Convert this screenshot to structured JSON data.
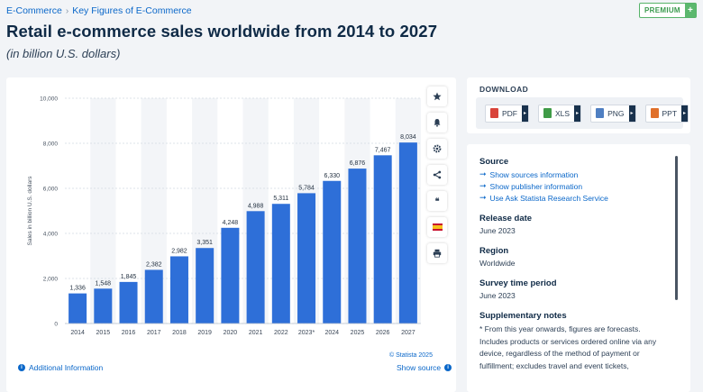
{
  "breadcrumb": {
    "items": [
      "E-Commerce",
      "Key Figures of E-Commerce"
    ],
    "separator": "›"
  },
  "premium_badge": {
    "label": "PREMIUM",
    "plus": "+"
  },
  "page": {
    "title": "Retail e-commerce sales worldwide from 2014 to 2027",
    "subtitle": "(in billion U.S. dollars)"
  },
  "chart_data": {
    "type": "bar",
    "categories": [
      "2014",
      "2015",
      "2016",
      "2017",
      "2018",
      "2019",
      "2020",
      "2021",
      "2022",
      "2023*",
      "2024",
      "2025",
      "2026",
      "2027"
    ],
    "values": [
      1336,
      1548,
      1845,
      2382,
      2982,
      3351,
      4248,
      4988,
      5311,
      5784,
      6330,
      6876,
      7467,
      8034
    ],
    "value_labels": [
      "1,336",
      "1,548",
      "1,845",
      "2,382",
      "2,982",
      "3,351",
      "4,248",
      "4,988",
      "5,311",
      "5,784",
      "6,330",
      "6,876",
      "7,467",
      "8,034"
    ],
    "ylabel": "Sales in billion U.S. dollars",
    "ylim": [
      0,
      10000
    ],
    "yticks": [
      0,
      2000,
      4000,
      6000,
      8000,
      10000
    ],
    "ytick_labels": [
      "0",
      "2,000",
      "4,000",
      "6,000",
      "8,000",
      "10,000"
    ],
    "grid": true,
    "alternating_column_bands": true,
    "bar_color": "#2e6fd8"
  },
  "chart_footer": {
    "credit": "© Statista 2025",
    "additional_info": "Additional Information",
    "show_source": "Show source"
  },
  "toolbar": {
    "icons": [
      "star-icon",
      "bell-icon",
      "gear-icon",
      "share-icon",
      "quote-icon",
      "flag-icon",
      "print-icon"
    ],
    "quote_glyph": "❝"
  },
  "download": {
    "title": "DOWNLOAD",
    "formats": [
      {
        "label": "PDF",
        "color": "#d9443b"
      },
      {
        "label": "XLS",
        "color": "#3f9b47"
      },
      {
        "label": "PNG",
        "color": "#4f7fc2"
      },
      {
        "label": "PPT",
        "color": "#e0702b"
      }
    ],
    "menu_arrow": "▸"
  },
  "source_panel": {
    "source_heading": "Source",
    "links": [
      "Show sources information",
      "Show publisher information",
      "Use Ask Statista Research Service"
    ],
    "link_arrow": "➞",
    "release_heading": "Release date",
    "release_value": "June 2023",
    "region_heading": "Region",
    "region_value": "Worldwide",
    "survey_heading": "Survey time period",
    "survey_value": "June 2023",
    "supp_heading": "Supplementary notes",
    "supp_text": "* From this year onwards, figures are forecasts. Includes products or services ordered online via any device, regardless of the method of payment or fulfillment; excludes travel and event tickets,"
  },
  "colors": {
    "link": "#0a67c9",
    "premium_green": "#5cb86e",
    "title": "#0f2a46"
  }
}
